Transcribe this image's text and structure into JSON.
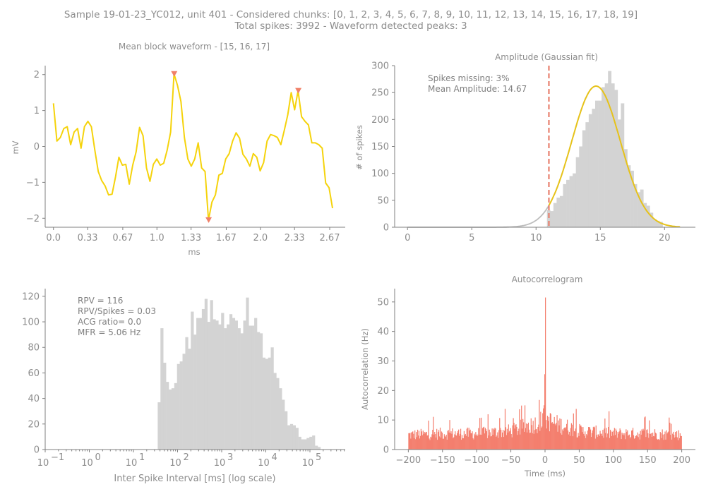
{
  "suptitle": {
    "line1": "Sample 19-01-23_YC012, unit 401 - Considered chunks: [0, 1, 2, 3, 4, 5, 6, 7, 8, 9, 10, 11, 12, 13, 14, 15, 16, 17, 18, 19]",
    "line2": "Total spikes: 3992 - Waveform detected peaks: 3"
  },
  "colors": {
    "waveform": "#f5d30c",
    "peak_marker": "#f08068",
    "histogram": "#d3d3d3",
    "gauss_fit": "#e6c21a",
    "gauss_tail": "#bdbdbd",
    "threshold": "#e8806e",
    "acg": "#f47f6e",
    "text": "#8c8c8c"
  },
  "chart_data": [
    {
      "id": "waveform",
      "type": "line",
      "title": "Mean block waveform - [15, 16, 17]",
      "xlabel": "ms",
      "ylabel": "mV",
      "xlim": [
        -0.08,
        2.82
      ],
      "ylim": [
        -2.25,
        2.25
      ],
      "xticks": [
        0.0,
        0.33,
        0.67,
        1.0,
        1.33,
        1.67,
        2.0,
        2.33,
        2.67
      ],
      "xtick_labels": [
        "0.0",
        "0.33",
        "0.67",
        "1.0",
        "1.33",
        "1.67",
        "2.0",
        "2.33",
        "2.67"
      ],
      "yticks": [
        -2,
        -1,
        0,
        1,
        2
      ],
      "ytick_labels": [
        "−2",
        "−1",
        "0",
        "1",
        "2"
      ],
      "x_start": 0.0,
      "x_step": 0.0333,
      "values": [
        1.2,
        0.15,
        0.25,
        0.5,
        0.55,
        0.05,
        0.4,
        0.5,
        -0.05,
        0.55,
        0.7,
        0.55,
        -0.1,
        -0.7,
        -0.95,
        -1.1,
        -1.35,
        -1.33,
        -0.85,
        -0.3,
        -0.52,
        -0.5,
        -1.05,
        -0.52,
        -0.15,
        0.53,
        0.3,
        -0.6,
        -0.97,
        -0.5,
        -0.35,
        -0.52,
        -0.47,
        -0.1,
        0.4,
        2.02,
        1.7,
        1.25,
        0.25,
        -0.35,
        -0.55,
        -0.35,
        0.1,
        -0.6,
        -0.7,
        -2.05,
        -1.55,
        -1.35,
        -0.8,
        -0.75,
        -0.35,
        -0.2,
        0.15,
        0.38,
        0.23,
        -0.22,
        -0.35,
        -0.55,
        -0.2,
        -0.3,
        -0.68,
        -0.45,
        0.15,
        0.33,
        0.3,
        0.25,
        0.05,
        0.45,
        0.88,
        1.5,
        1.02,
        1.55,
        0.83,
        0.7,
        0.6,
        0.1,
        0.1,
        0.05,
        -0.05,
        -1.02,
        -1.15,
        -1.72
      ],
      "peaks": [
        {
          "x": 1.167,
          "y": 2.02,
          "marker": "down-triangle"
        },
        {
          "x": 1.5,
          "y": -2.05,
          "marker": "down-triangle"
        },
        {
          "x": 2.367,
          "y": 1.55,
          "marker": "down-triangle"
        }
      ]
    },
    {
      "id": "amplitude",
      "type": "bar",
      "title": "Amplitude (Gaussian fit)",
      "xlabel": "",
      "ylabel": "# of spikes",
      "xlim": [
        -1.0,
        22.4
      ],
      "ylim": [
        0,
        300
      ],
      "xticks": [
        0,
        5,
        10,
        15,
        20
      ],
      "xtick_labels": [
        "0",
        "5",
        "10",
        "15",
        "20"
      ],
      "yticks": [
        0,
        50,
        100,
        150,
        200,
        250,
        300
      ],
      "ytick_labels": [
        "0",
        "50",
        "100",
        "150",
        "200",
        "250",
        "300"
      ],
      "annotations": [
        "Spikes missing: 3%",
        "Mean Amplitude: 14.67"
      ],
      "bin_start": 10.85,
      "bin_width": 0.25,
      "counts": [
        32,
        30,
        45,
        55,
        58,
        80,
        88,
        95,
        100,
        130,
        150,
        180,
        195,
        210,
        220,
        235,
        235,
        260,
        267,
        290,
        267,
        255,
        200,
        230,
        145,
        115,
        105,
        80,
        65,
        70,
        45,
        40,
        27,
        15,
        12,
        10
      ],
      "fit": {
        "mu": 14.67,
        "sigma": 1.9,
        "amp": 262,
        "x_start": 0.0,
        "x_end": 21.2
      },
      "threshold_x": 11.0
    },
    {
      "id": "isi",
      "type": "bar",
      "title": "",
      "xlabel": "Inter Spike Interval [ms] (log scale)",
      "ylabel": "",
      "xscale": "log",
      "xlim_log10": [
        -1,
        5.8
      ],
      "ylim": [
        0,
        126
      ],
      "xticks_log10": [
        -1,
        0,
        1,
        2,
        3,
        4,
        5
      ],
      "xtick_labels": [
        "10",
        "10",
        "10",
        "10",
        "10",
        "10",
        "10"
      ],
      "xtick_exponents": [
        "−1",
        "0",
        "1",
        "2",
        "3",
        "4",
        "5"
      ],
      "yticks": [
        0,
        20,
        40,
        60,
        80,
        100,
        120
      ],
      "ytick_labels": [
        "0",
        "20",
        "40",
        "60",
        "80",
        "100",
        "120"
      ],
      "annotations": [
        "RPV = 116",
        "RPV/Spikes = 0.03",
        "ACG ratio= 0.0",
        "MFR = 5.06 Hz"
      ],
      "bin_start_log10": 1.55,
      "bin_width_log10": 0.0625,
      "counts": [
        37,
        95,
        68,
        53,
        47,
        48,
        52,
        67,
        69,
        75,
        88,
        79,
        108,
        90,
        103,
        103,
        110,
        118,
        100,
        117,
        102,
        101,
        98,
        107,
        95,
        98,
        106,
        103,
        101,
        95,
        91,
        101,
        119,
        97,
        97,
        103,
        92,
        91,
        72,
        71,
        72,
        80,
        60,
        56,
        48,
        39,
        30,
        19,
        20,
        19,
        17,
        10,
        8,
        8,
        9,
        10,
        11,
        3,
        2
      ]
    },
    {
      "id": "acg",
      "type": "bar",
      "title": "Autocorrelogram",
      "xlabel": "Time (ms)",
      "ylabel": "Autocorrelation (Hz)",
      "xlim": [
        -220,
        220
      ],
      "ylim": [
        0,
        54.5
      ],
      "xticks": [
        -200,
        -150,
        -100,
        -50,
        0,
        50,
        100,
        150,
        200
      ],
      "xtick_labels": [
        "−200",
        "−150",
        "−100",
        "−50",
        "0",
        "50",
        "100",
        "150",
        "200"
      ],
      "yticks": [
        0,
        10,
        20,
        30,
        40,
        50
      ],
      "ytick_labels": [
        "0",
        "10",
        "20",
        "30",
        "40",
        "50"
      ],
      "bin_width": 1,
      "center_spike": 51.5,
      "near_center": [
        {
          "x": -1,
          "y": 25.5
        },
        {
          "x": -2,
          "y": 15.0
        },
        {
          "x": 1,
          "y": 10.0
        }
      ],
      "envelope_points": [
        {
          "x": -200,
          "y": 5.5
        },
        {
          "x": -150,
          "y": 6.0
        },
        {
          "x": -100,
          "y": 6.0
        },
        {
          "x": -50,
          "y": 7.0
        },
        {
          "x": -25,
          "y": 9.0
        },
        {
          "x": -10,
          "y": 10.0
        },
        {
          "x": 0,
          "y": 12.0
        },
        {
          "x": 10,
          "y": 10.0
        },
        {
          "x": 25,
          "y": 9.0
        },
        {
          "x": 50,
          "y": 7.0
        },
        {
          "x": 100,
          "y": 6.0
        },
        {
          "x": 150,
          "y": 6.0
        },
        {
          "x": 200,
          "y": 5.5
        }
      ]
    }
  ]
}
